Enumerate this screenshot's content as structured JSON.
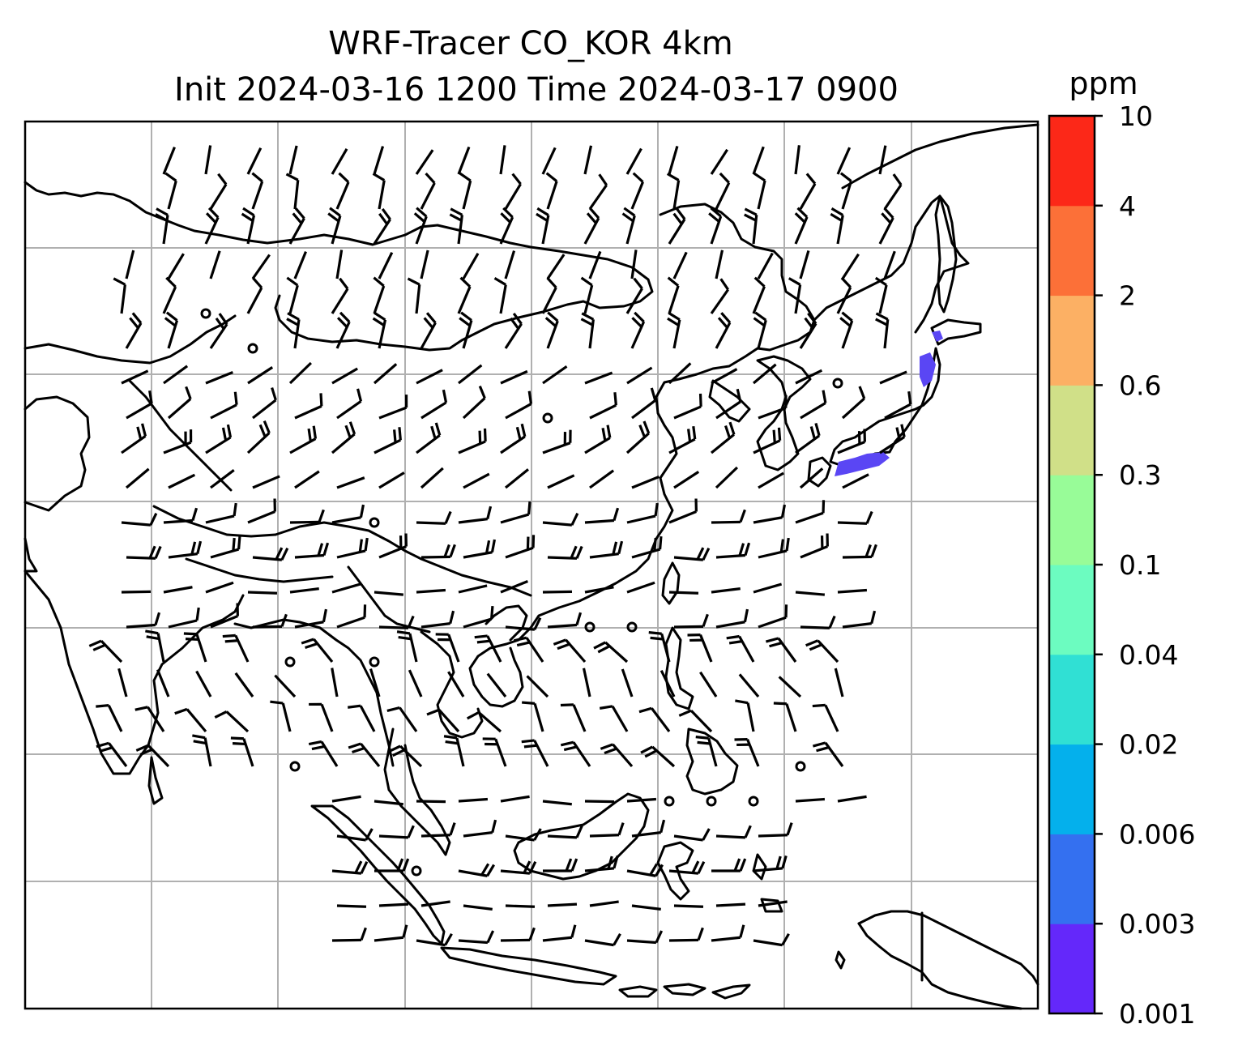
{
  "title": {
    "line1": "WRF-Tracer CO_KOR 4km",
    "line2": "Init 2024-03-16 1200 Time 2024-03-17 0900"
  },
  "colorbar": {
    "units": "ppm",
    "levels": [
      "0.001",
      "0.003",
      "0.006",
      "0.02",
      "0.04",
      "0.1",
      "0.3",
      "0.6",
      "2",
      "4",
      "10"
    ],
    "colors": [
      "#6428fa",
      "#3470f0",
      "#04b0ec",
      "#30e0d4",
      "#6cfcc0",
      "#98fc98",
      "#d0e088",
      "#fcb064",
      "#fc7038",
      "#fc2818"
    ]
  },
  "map": {
    "coastline_color": "#000000",
    "grid_color": "#b0b0b0",
    "gridlines": true,
    "tracer_color": "#5a46f4"
  }
}
